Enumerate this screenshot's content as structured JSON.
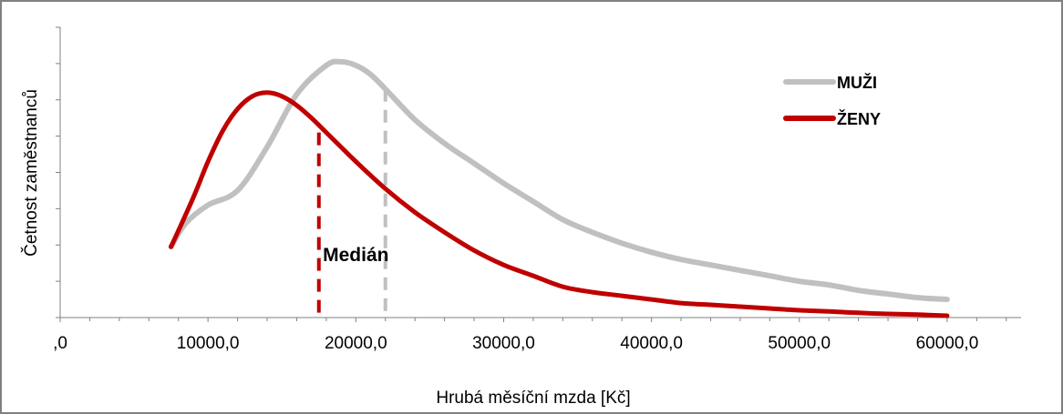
{
  "chart_data": {
    "type": "line",
    "title": "",
    "xlabel": "Hrubá měsíční mzda [Kč]",
    "ylabel": "Četnost zaměstnanců",
    "xlim": [
      0,
      65000
    ],
    "ylim": [
      0,
      8
    ],
    "x_tick_values": [
      0,
      10000,
      20000,
      30000,
      40000,
      50000,
      60000
    ],
    "x_tick_labels": [
      ",0",
      "10000,0",
      "20000,0",
      "30000,0",
      "40000,0",
      "50000,0",
      "60000,0"
    ],
    "y_tick_values": [
      0,
      1,
      2,
      3,
      4,
      5,
      6,
      7,
      8
    ],
    "grid": false,
    "legend_position": "top-right",
    "series": [
      {
        "name": "MUŽI",
        "color": "#c0c0c0",
        "x": [
          7500,
          8500,
          10000,
          12000,
          14000,
          16000,
          18000,
          19000,
          20000,
          21000,
          22000,
          24000,
          26000,
          28000,
          30000,
          32000,
          34000,
          36000,
          38000,
          40000,
          42000,
          44000,
          46000,
          48000,
          50000,
          52000,
          54000,
          56000,
          58000,
          60000
        ],
        "y": [
          1.95,
          2.6,
          3.1,
          3.5,
          4.7,
          6.15,
          6.95,
          7.05,
          6.95,
          6.7,
          6.3,
          5.45,
          4.8,
          4.25,
          3.7,
          3.2,
          2.7,
          2.35,
          2.05,
          1.8,
          1.6,
          1.45,
          1.3,
          1.15,
          1.0,
          0.9,
          0.75,
          0.65,
          0.55,
          0.5
        ]
      },
      {
        "name": "ŽENY",
        "color": "#c00000",
        "x": [
          7500,
          9000,
          10000,
          11000,
          12000,
          13000,
          14000,
          15000,
          16000,
          17000,
          18000,
          19000,
          20000,
          22000,
          24000,
          26000,
          28000,
          30000,
          32000,
          34000,
          36000,
          38000,
          40000,
          42000,
          44000,
          46000,
          48000,
          50000,
          52000,
          54000,
          56000,
          58000,
          60000
        ],
        "y": [
          1.95,
          3.3,
          4.3,
          5.15,
          5.75,
          6.1,
          6.2,
          6.1,
          5.85,
          5.5,
          5.1,
          4.7,
          4.3,
          3.55,
          2.9,
          2.35,
          1.85,
          1.45,
          1.15,
          0.85,
          0.7,
          0.6,
          0.5,
          0.4,
          0.35,
          0.3,
          0.25,
          0.2,
          0.17,
          0.13,
          0.1,
          0.08,
          0.05
        ]
      }
    ],
    "medians": [
      {
        "series": "MUŽI",
        "x": 22000,
        "y": 6.3,
        "color": "#c0c0c0"
      },
      {
        "series": "ŽENY",
        "x": 17500,
        "y": 5.1,
        "color": "#c00000"
      }
    ],
    "annotation": {
      "text": "Medián",
      "x": 20000,
      "y": 1.55
    }
  }
}
